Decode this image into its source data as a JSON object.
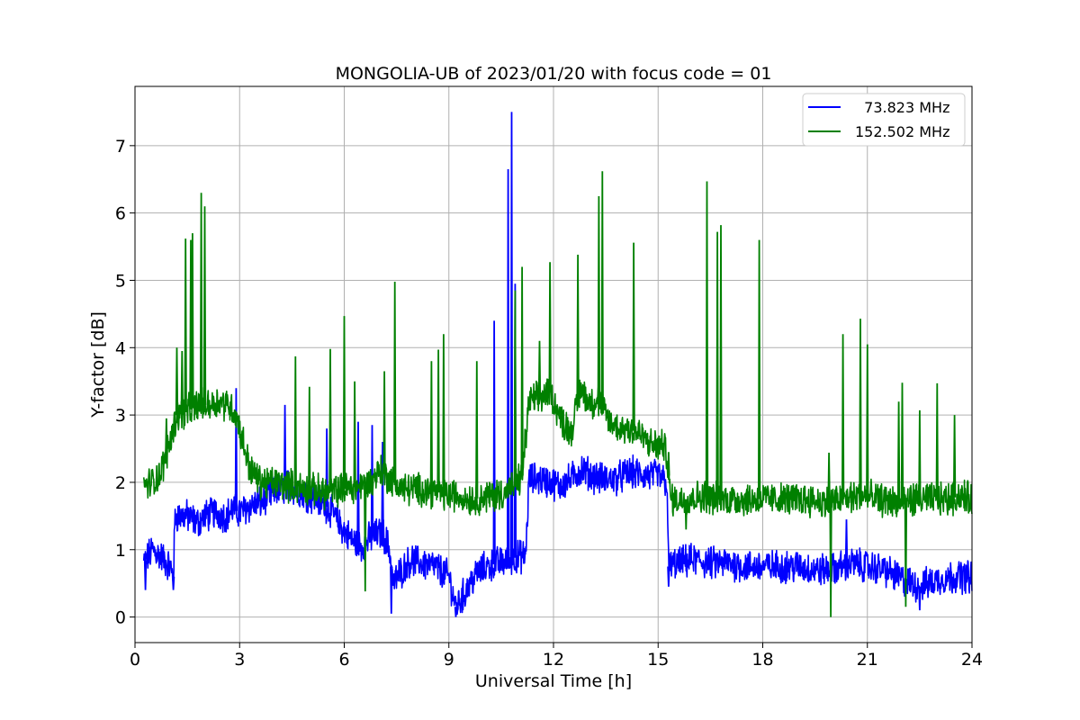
{
  "chart_data": {
    "type": "line",
    "title": "MONGOLIA-UB of 2023/01/20 with focus code = 01",
    "xlabel": "Universal Time [h]",
    "ylabel": "Y-factor [dB]",
    "xlim": [
      0,
      24
    ],
    "ylim": [
      -0.38,
      7.88
    ],
    "xticks": [
      "0",
      "3",
      "6",
      "9",
      "12",
      "15",
      "18",
      "21",
      "24"
    ],
    "yticks": [
      "0",
      "1",
      "2",
      "3",
      "4",
      "5",
      "6",
      "7"
    ],
    "grid": true,
    "legend_position": "top-right",
    "series": [
      {
        "name": "  73.823 MHz",
        "color": "#0000ff",
        "points": [
          [
            0.25,
            0.8
          ],
          [
            0.5,
            1.0
          ],
          [
            0.75,
            0.9
          ],
          [
            1.0,
            0.75
          ],
          [
            1.1,
            0.6
          ],
          [
            1.15,
            1.5
          ],
          [
            1.5,
            1.5
          ],
          [
            1.8,
            1.4
          ],
          [
            2.0,
            1.5
          ],
          [
            2.3,
            1.55
          ],
          [
            2.6,
            1.5
          ],
          [
            2.8,
            1.6
          ],
          [
            3.0,
            1.55
          ],
          [
            3.3,
            1.65
          ],
          [
            3.6,
            1.7
          ],
          [
            4.0,
            1.85
          ],
          [
            4.4,
            1.95
          ],
          [
            4.8,
            1.85
          ],
          [
            5.2,
            1.75
          ],
          [
            5.6,
            1.6
          ],
          [
            5.9,
            1.35
          ],
          [
            6.2,
            1.15
          ],
          [
            6.5,
            1.05
          ],
          [
            6.8,
            1.2
          ],
          [
            7.1,
            1.25
          ],
          [
            7.3,
            1.0
          ],
          [
            7.4,
            0.5
          ],
          [
            7.6,
            0.65
          ],
          [
            7.9,
            0.85
          ],
          [
            8.2,
            0.8
          ],
          [
            8.6,
            0.75
          ],
          [
            9.0,
            0.6
          ],
          [
            9.2,
            0.15
          ],
          [
            9.5,
            0.4
          ],
          [
            9.8,
            0.65
          ],
          [
            10.1,
            0.75
          ],
          [
            10.4,
            0.8
          ],
          [
            10.75,
            0.85
          ],
          [
            11.0,
            0.9
          ],
          [
            11.2,
            0.9
          ],
          [
            11.3,
            2.05
          ],
          [
            11.6,
            2.05
          ],
          [
            11.9,
            2.0
          ],
          [
            12.2,
            1.95
          ],
          [
            12.5,
            2.05
          ],
          [
            12.8,
            2.2
          ],
          [
            13.1,
            2.1
          ],
          [
            13.4,
            2.05
          ],
          [
            13.8,
            2.05
          ],
          [
            14.2,
            2.15
          ],
          [
            14.6,
            2.1
          ],
          [
            15.0,
            2.1
          ],
          [
            15.25,
            2.0
          ],
          [
            15.3,
            0.75
          ],
          [
            15.6,
            0.8
          ],
          [
            16.0,
            0.85
          ],
          [
            16.5,
            0.8
          ],
          [
            17.0,
            0.8
          ],
          [
            17.5,
            0.75
          ],
          [
            18.0,
            0.75
          ],
          [
            18.5,
            0.75
          ],
          [
            19.0,
            0.75
          ],
          [
            19.5,
            0.7
          ],
          [
            20.0,
            0.7
          ],
          [
            20.5,
            0.8
          ],
          [
            21.0,
            0.75
          ],
          [
            21.5,
            0.7
          ],
          [
            22.0,
            0.55
          ],
          [
            22.5,
            0.45
          ],
          [
            23.0,
            0.55
          ],
          [
            23.5,
            0.6
          ],
          [
            24.0,
            0.6
          ]
        ],
        "peaks": [
          [
            2.9,
            3.4
          ],
          [
            4.3,
            3.15
          ],
          [
            5.5,
            2.8
          ],
          [
            6.4,
            2.9
          ],
          [
            6.8,
            2.85
          ],
          [
            7.1,
            2.6
          ],
          [
            10.3,
            4.4
          ],
          [
            10.7,
            6.65
          ],
          [
            10.8,
            7.5
          ],
          [
            10.9,
            4.95
          ],
          [
            20.4,
            1.45
          ]
        ],
        "dips": [
          [
            0.3,
            0.4
          ],
          [
            1.1,
            0.4
          ],
          [
            7.35,
            0.05
          ],
          [
            9.2,
            0.0
          ],
          [
            9.4,
            0.1
          ],
          [
            15.3,
            0.45
          ],
          [
            22.5,
            0.1
          ]
        ]
      },
      {
        "name": "152.502 MHz",
        "color": "#008000",
        "points": [
          [
            0.25,
            1.95
          ],
          [
            0.5,
            2.0
          ],
          [
            0.75,
            2.15
          ],
          [
            1.0,
            2.6
          ],
          [
            1.2,
            3.0
          ],
          [
            1.5,
            3.05
          ],
          [
            1.8,
            3.15
          ],
          [
            2.1,
            3.15
          ],
          [
            2.4,
            3.2
          ],
          [
            2.7,
            3.15
          ],
          [
            2.9,
            3.0
          ],
          [
            3.1,
            2.6
          ],
          [
            3.3,
            2.2
          ],
          [
            3.6,
            2.0
          ],
          [
            4.0,
            2.0
          ],
          [
            4.5,
            1.95
          ],
          [
            5.0,
            1.9
          ],
          [
            5.5,
            1.85
          ],
          [
            6.0,
            1.9
          ],
          [
            6.5,
            1.95
          ],
          [
            6.8,
            2.0
          ],
          [
            7.0,
            2.2
          ],
          [
            7.3,
            2.05
          ],
          [
            7.7,
            1.9
          ],
          [
            8.2,
            1.9
          ],
          [
            8.7,
            1.85
          ],
          [
            9.2,
            1.8
          ],
          [
            9.7,
            1.75
          ],
          [
            10.2,
            1.8
          ],
          [
            10.6,
            1.85
          ],
          [
            10.9,
            1.95
          ],
          [
            11.1,
            2.1
          ],
          [
            11.3,
            3.2
          ],
          [
            11.6,
            3.25
          ],
          [
            11.9,
            3.35
          ],
          [
            12.2,
            2.95
          ],
          [
            12.5,
            2.75
          ],
          [
            12.8,
            3.4
          ],
          [
            13.0,
            3.2
          ],
          [
            13.3,
            3.2
          ],
          [
            13.6,
            2.9
          ],
          [
            13.9,
            2.8
          ],
          [
            14.2,
            2.8
          ],
          [
            14.5,
            2.7
          ],
          [
            14.8,
            2.55
          ],
          [
            15.1,
            2.55
          ],
          [
            15.25,
            2.45
          ],
          [
            15.35,
            1.75
          ],
          [
            15.8,
            1.75
          ],
          [
            16.3,
            1.8
          ],
          [
            16.8,
            1.75
          ],
          [
            17.3,
            1.75
          ],
          [
            17.8,
            1.75
          ],
          [
            18.3,
            1.75
          ],
          [
            18.8,
            1.75
          ],
          [
            19.3,
            1.75
          ],
          [
            19.8,
            1.7
          ],
          [
            20.3,
            1.75
          ],
          [
            20.8,
            1.8
          ],
          [
            21.3,
            1.75
          ],
          [
            21.8,
            1.7
          ],
          [
            22.3,
            1.75
          ],
          [
            22.8,
            1.75
          ],
          [
            23.3,
            1.75
          ],
          [
            23.7,
            1.8
          ],
          [
            24.0,
            1.75
          ]
        ],
        "peaks": [
          [
            0.9,
            2.95
          ],
          [
            1.2,
            4.0
          ],
          [
            1.35,
            3.95
          ],
          [
            1.45,
            5.62
          ],
          [
            1.6,
            5.6
          ],
          [
            1.65,
            5.7
          ],
          [
            1.9,
            6.3
          ],
          [
            2.0,
            6.1
          ],
          [
            4.6,
            3.87
          ],
          [
            5.0,
            3.42
          ],
          [
            5.6,
            3.98
          ],
          [
            6.0,
            4.47
          ],
          [
            6.3,
            3.5
          ],
          [
            7.15,
            3.65
          ],
          [
            7.45,
            4.98
          ],
          [
            8.5,
            3.8
          ],
          [
            8.7,
            3.97
          ],
          [
            8.85,
            4.2
          ],
          [
            9.8,
            3.8
          ],
          [
            10.9,
            4.85
          ],
          [
            11.1,
            5.2
          ],
          [
            11.6,
            4.1
          ],
          [
            11.9,
            5.27
          ],
          [
            12.7,
            5.38
          ],
          [
            13.3,
            6.25
          ],
          [
            13.4,
            6.62
          ],
          [
            14.3,
            5.56
          ],
          [
            15.3,
            2.45
          ],
          [
            16.4,
            6.47
          ],
          [
            16.7,
            5.72
          ],
          [
            16.8,
            5.82
          ],
          [
            17.9,
            5.6
          ],
          [
            19.9,
            2.44
          ],
          [
            20.3,
            4.2
          ],
          [
            20.8,
            4.43
          ],
          [
            21.0,
            4.05
          ],
          [
            21.9,
            3.2
          ],
          [
            22.0,
            3.48
          ],
          [
            22.5,
            3.07
          ],
          [
            23.0,
            3.47
          ],
          [
            23.5,
            3.0
          ]
        ],
        "dips": [
          [
            6.6,
            0.38
          ],
          [
            15.8,
            1.3
          ],
          [
            19.95,
            0.0
          ],
          [
            22.1,
            0.15
          ]
        ]
      }
    ]
  }
}
